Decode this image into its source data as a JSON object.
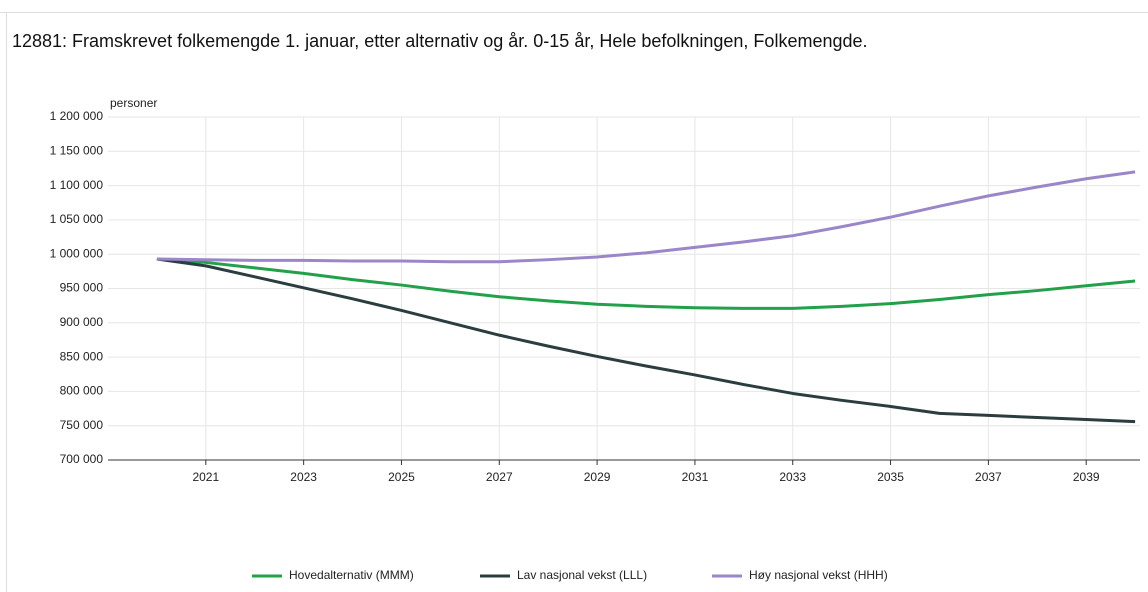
{
  "chart_data": {
    "type": "line",
    "title": "12881: Framskrevet folkemengde 1. januar, etter alternativ og år. 0-15 år, Hele befolkningen, Folkemengde.",
    "y_unit_label": "personer",
    "x": [
      2020,
      2021,
      2022,
      2023,
      2024,
      2025,
      2026,
      2027,
      2028,
      2029,
      2030,
      2031,
      2032,
      2033,
      2034,
      2035,
      2036,
      2037,
      2038,
      2039,
      2040
    ],
    "series": [
      {
        "name": "Hovedalternativ (MMM)",
        "color": "#22a04a",
        "values": [
          993000,
          988000,
          980000,
          972000,
          963000,
          955000,
          946000,
          938000,
          932000,
          927000,
          924000,
          922000,
          921000,
          921000,
          924000,
          928000,
          934000,
          941000,
          947000,
          954000,
          961000
        ]
      },
      {
        "name": "Lav nasjonal vekst (LLL)",
        "color": "#2b3d3f",
        "values": [
          993000,
          983000,
          967000,
          951000,
          935000,
          918000,
          900000,
          882000,
          866000,
          851000,
          837000,
          824000,
          810000,
          797000,
          787000,
          778000,
          768000,
          765000,
          762000,
          759000,
          756000
        ]
      },
      {
        "name": "Høy nasjonal vekst (HHH)",
        "color": "#9b86c9",
        "values": [
          993000,
          992000,
          991000,
          991000,
          990000,
          990000,
          989000,
          989000,
          992000,
          996000,
          1002000,
          1010000,
          1018000,
          1027000,
          1040000,
          1054000,
          1070000,
          1085000,
          1098000,
          1110000,
          1120000
        ]
      }
    ],
    "xlim": [
      2019,
      2040.1
    ],
    "xticks": [
      2021,
      2023,
      2025,
      2027,
      2029,
      2031,
      2033,
      2035,
      2037,
      2039
    ],
    "ylim": [
      700000,
      1200000
    ],
    "yticks": [
      {
        "value": 700000,
        "label": "700 000"
      },
      {
        "value": 750000,
        "label": "750 000"
      },
      {
        "value": 800000,
        "label": "800 000"
      },
      {
        "value": 850000,
        "label": "850 000"
      },
      {
        "value": 900000,
        "label": "900 000"
      },
      {
        "value": 950000,
        "label": "950 000"
      },
      {
        "value": 1000000,
        "label": "1 000 000"
      },
      {
        "value": 1050000,
        "label": "1 050 000"
      },
      {
        "value": 1100000,
        "label": "1 100 000"
      },
      {
        "value": 1150000,
        "label": "1 150 000"
      },
      {
        "value": 1200000,
        "label": "1 200 000"
      }
    ],
    "grid": true,
    "legend": "bottom"
  }
}
